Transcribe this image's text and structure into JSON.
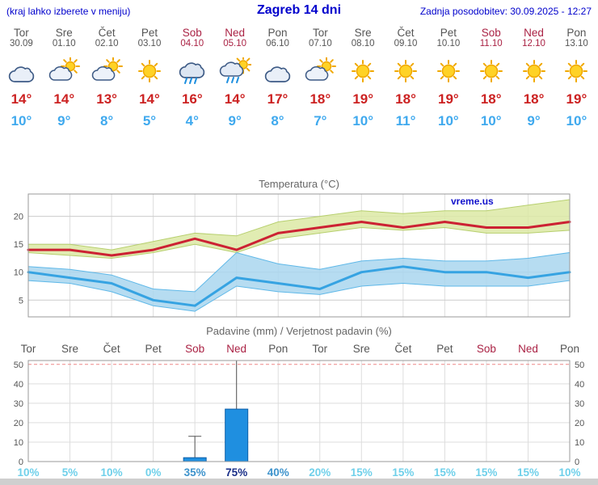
{
  "header": {
    "left_note": "(kraj lahko izberete v meniju)",
    "title": "Zagreb 14 dni",
    "updated": "Zadnja posodobitev: 30.09.2025 - 12:27"
  },
  "days": [
    {
      "name": "Tor",
      "date": "30.09",
      "weekend": false,
      "icon": "cloudy",
      "tmax": "14°",
      "tmin": "10°"
    },
    {
      "name": "Sre",
      "date": "01.10",
      "weekend": false,
      "icon": "partly",
      "tmax": "14°",
      "tmin": "9°"
    },
    {
      "name": "Čet",
      "date": "02.10",
      "weekend": false,
      "icon": "partly",
      "tmax": "13°",
      "tmin": "8°"
    },
    {
      "name": "Pet",
      "date": "03.10",
      "weekend": false,
      "icon": "sunny",
      "tmax": "14°",
      "tmin": "5°"
    },
    {
      "name": "Sob",
      "date": "04.10",
      "weekend": true,
      "icon": "rain",
      "tmax": "16°",
      "tmin": "4°"
    },
    {
      "name": "Ned",
      "date": "05.10",
      "weekend": true,
      "icon": "rain-sun",
      "tmax": "14°",
      "tmin": "9°"
    },
    {
      "name": "Pon",
      "date": "06.10",
      "weekend": false,
      "icon": "cloudy",
      "tmax": "17°",
      "tmin": "8°"
    },
    {
      "name": "Tor",
      "date": "07.10",
      "weekend": false,
      "icon": "partly",
      "tmax": "18°",
      "tmin": "7°"
    },
    {
      "name": "Sre",
      "date": "08.10",
      "weekend": false,
      "icon": "sunny",
      "tmax": "19°",
      "tmin": "10°"
    },
    {
      "name": "Čet",
      "date": "09.10",
      "weekend": false,
      "icon": "sunny",
      "tmax": "18°",
      "tmin": "11°"
    },
    {
      "name": "Pet",
      "date": "10.10",
      "weekend": false,
      "icon": "sunny",
      "tmax": "19°",
      "tmin": "10°"
    },
    {
      "name": "Sob",
      "date": "11.10",
      "weekend": true,
      "icon": "sunny",
      "tmax": "18°",
      "tmin": "10°"
    },
    {
      "name": "Ned",
      "date": "12.10",
      "weekend": true,
      "icon": "sunny",
      "tmax": "18°",
      "tmin": "9°"
    },
    {
      "name": "Pon",
      "date": "13.10",
      "weekend": false,
      "icon": "sunny",
      "tmax": "19°",
      "tmin": "10°"
    }
  ],
  "chart_data": [
    {
      "type": "line",
      "title": "Temperatura (°C)",
      "watermark": "vreme.us",
      "categories": [
        "Tor",
        "Sre",
        "Čet",
        "Pet",
        "Sob",
        "Ned",
        "Pon",
        "Tor",
        "Sre",
        "Čet",
        "Pet",
        "Sob",
        "Ned",
        "Pon"
      ],
      "ylim": [
        2,
        24
      ],
      "yticks": [
        5,
        10,
        15,
        20
      ],
      "series": [
        {
          "name": "temp-max",
          "values": [
            14,
            14,
            13,
            14,
            16,
            14,
            17,
            18,
            19,
            18,
            19,
            18,
            18,
            19
          ],
          "hi": [
            15,
            15,
            14,
            15.5,
            17,
            16.5,
            19,
            20,
            21,
            20.5,
            21,
            21,
            22,
            23
          ],
          "lo": [
            13.5,
            13,
            12.5,
            13.5,
            15,
            13.5,
            16,
            17,
            18,
            17.5,
            18,
            17,
            17,
            17.5
          ],
          "line_color": "#cc2233",
          "band_color": "#dce9a4",
          "band_edge": "#b7cf6e"
        },
        {
          "name": "temp-min",
          "values": [
            10,
            9,
            8,
            5,
            4,
            9,
            8,
            7,
            10,
            11,
            10,
            10,
            9,
            10
          ],
          "hi": [
            11,
            10.5,
            9.5,
            7,
            6.5,
            13.5,
            11.5,
            10.5,
            12,
            12.5,
            12,
            12,
            12.5,
            13.5
          ],
          "lo": [
            8.5,
            8,
            6.5,
            4,
            3,
            7.5,
            6.5,
            6,
            7.5,
            8,
            7.5,
            7.5,
            7.5,
            8.5
          ],
          "line_color": "#36a3e2",
          "band_color": "#a9d6ef",
          "band_edge": "#5fb8e8"
        }
      ]
    },
    {
      "type": "bar",
      "title": "Padavine (mm) / Verjetnost padavin (%)",
      "categories": [
        "Tor",
        "Sre",
        "Čet",
        "Pet",
        "Sob",
        "Ned",
        "Pon",
        "Tor",
        "Sre",
        "Čet",
        "Pet",
        "Sob",
        "Ned",
        "Pon"
      ],
      "values": [
        0,
        0,
        0,
        0,
        2,
        27,
        0,
        0,
        0,
        0,
        0,
        0,
        0,
        0
      ],
      "whiskers": [
        0,
        0,
        0,
        0,
        13,
        52,
        0,
        0,
        0,
        0,
        0,
        0,
        0,
        0
      ],
      "probabilities": [
        "10%",
        "5%",
        "10%",
        "0%",
        "35%",
        "75%",
        "40%",
        "20%",
        "15%",
        "15%",
        "15%",
        "15%",
        "15%",
        "10%"
      ],
      "ylim": [
        0,
        52
      ],
      "yticks": [
        0,
        10,
        20,
        30,
        40,
        50
      ],
      "bar_color": "#1f8fe0",
      "bar_edge": "#0f5fa8"
    }
  ],
  "colors": {
    "weekday": "#555555",
    "weekend": "#aa2244",
    "tmax": "#cc2222",
    "tmin": "#3fa9ee",
    "header_blue": "#0000cc",
    "prob_low": "#6fd0ea",
    "prob_mid": "#3e93cc",
    "prob_high": "#1a2f88"
  }
}
